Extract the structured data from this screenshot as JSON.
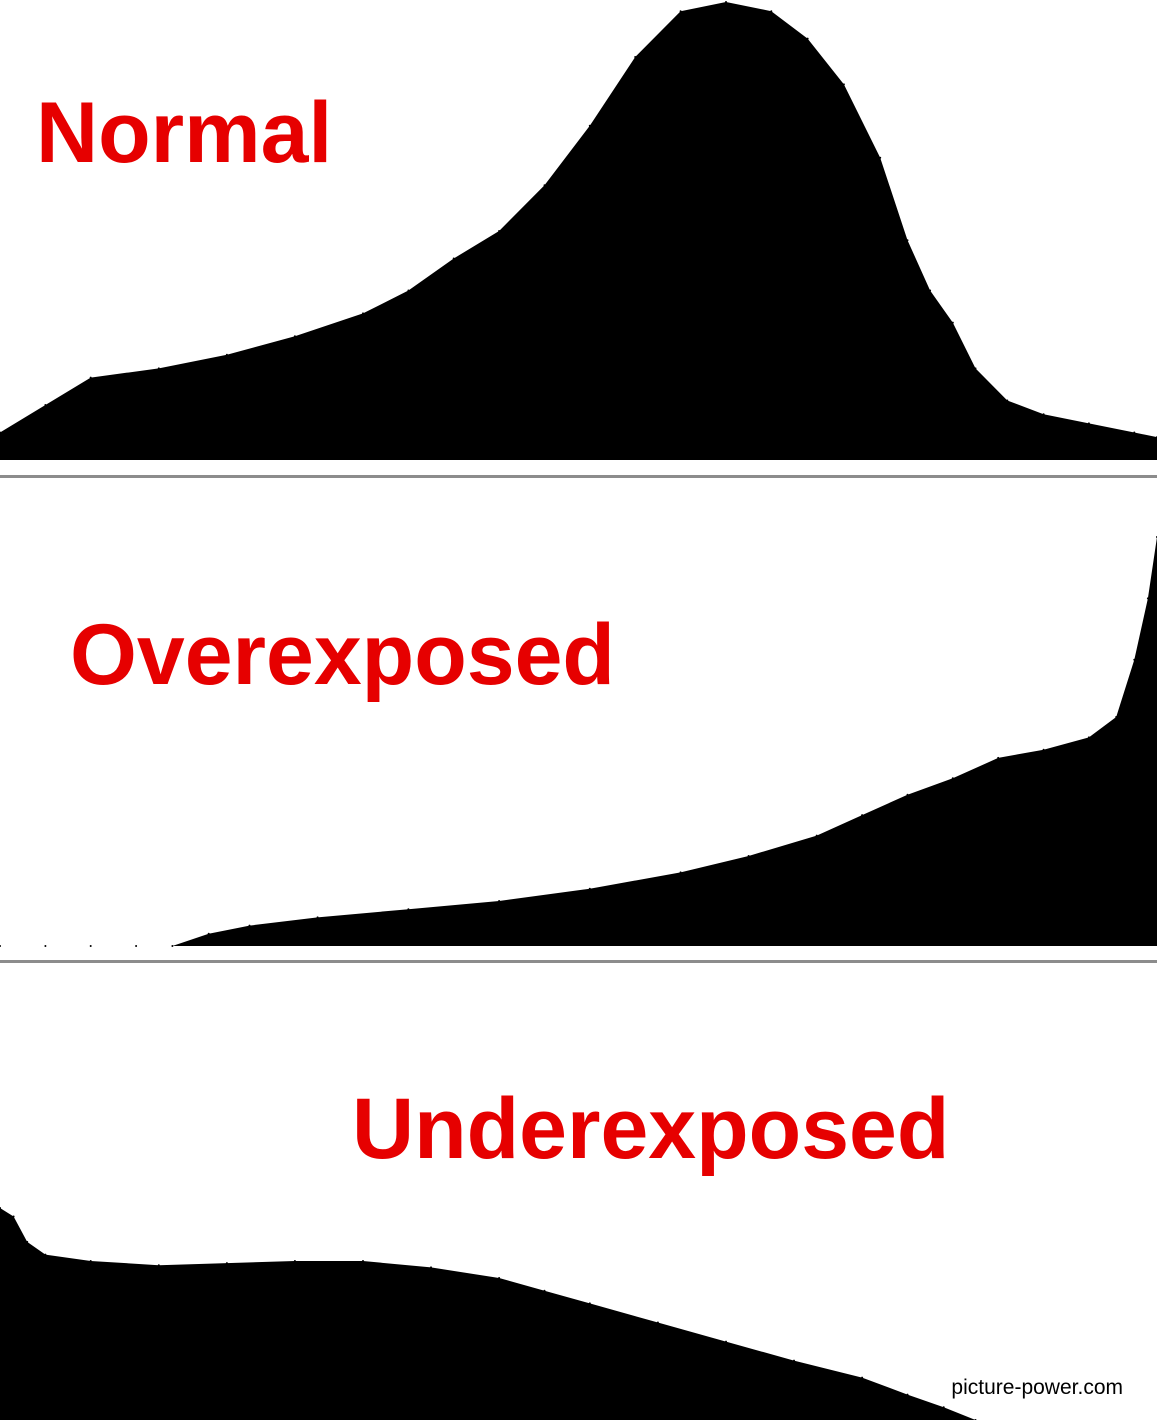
{
  "chart_data": [
    {
      "type": "area",
      "title": "Normal",
      "xlabel": "",
      "ylabel": "",
      "x_range": [
        0,
        255
      ],
      "y_range": [
        0,
        100
      ],
      "grid": false,
      "legend": "none",
      "fill_color": "#000000",
      "x": [
        0,
        10,
        20,
        35,
        50,
        65,
        80,
        90,
        100,
        110,
        120,
        130,
        140,
        150,
        160,
        170,
        178,
        186,
        194,
        200,
        205,
        210,
        215,
        222,
        230,
        240,
        250,
        255
      ],
      "values": [
        6,
        12,
        18,
        20,
        23,
        27,
        32,
        37,
        44,
        50,
        60,
        73,
        88,
        98,
        100,
        98,
        92,
        82,
        66,
        48,
        37,
        30,
        20,
        13,
        10,
        8,
        6,
        5
      ]
    },
    {
      "type": "area",
      "title": "Overexposed",
      "xlabel": "",
      "ylabel": "",
      "x_range": [
        0,
        255
      ],
      "y_range": [
        0,
        100
      ],
      "grid": false,
      "legend": "none",
      "fill_color": "#000000",
      "x": [
        0,
        10,
        20,
        30,
        38,
        46,
        55,
        70,
        90,
        110,
        130,
        150,
        165,
        180,
        190,
        200,
        210,
        220,
        230,
        240,
        246,
        250,
        253,
        255
      ],
      "values": [
        0,
        0,
        0,
        0,
        0,
        3,
        5,
        7,
        9,
        11,
        14,
        18,
        22,
        27,
        32,
        37,
        41,
        46,
        48,
        51,
        56,
        70,
        85,
        100
      ]
    },
    {
      "type": "area",
      "title": "Underexposed",
      "xlabel": "",
      "ylabel": "",
      "x_range": [
        0,
        255
      ],
      "y_range": [
        0,
        100
      ],
      "grid": false,
      "legend": "none",
      "fill_color": "#000000",
      "x": [
        0,
        3,
        6,
        10,
        20,
        35,
        50,
        65,
        80,
        95,
        110,
        120,
        130,
        145,
        160,
        175,
        190,
        200,
        208,
        215
      ],
      "values": [
        100,
        96,
        84,
        78,
        75,
        73,
        74,
        75,
        75,
        72,
        67,
        61,
        55,
        46,
        37,
        28,
        20,
        12,
        6,
        0
      ]
    }
  ],
  "footer": {
    "credit": "picture-power.com"
  },
  "colors": {
    "label": "#e60000",
    "bars": "#000000",
    "divider": "#8c8c8c"
  }
}
